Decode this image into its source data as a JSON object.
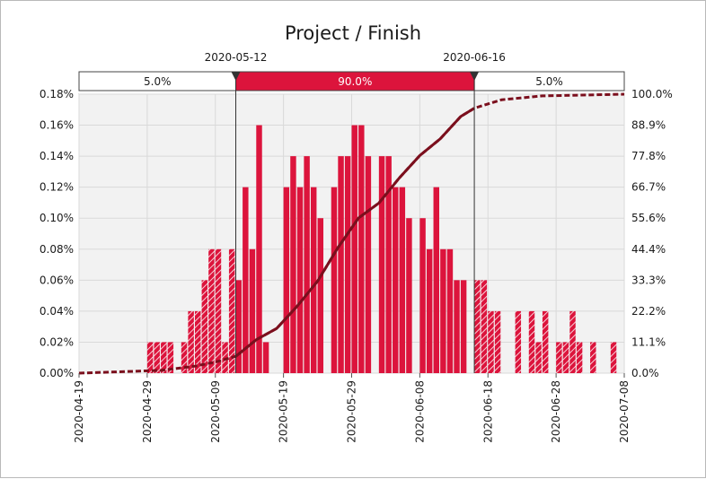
{
  "chart_data": {
    "type": "bar",
    "title": "Project / Finish",
    "x_ticks": [
      "2020-04-19",
      "2020-04-29",
      "2020-05-09",
      "2020-05-19",
      "2020-05-29",
      "2020-06-08",
      "2020-06-18",
      "2020-06-28",
      "2020-07-08"
    ],
    "x_range": [
      "2020-04-19",
      "2020-07-08"
    ],
    "y_left_ticks": [
      "0.00%",
      "0.02%",
      "0.04%",
      "0.06%",
      "0.08%",
      "0.10%",
      "0.12%",
      "0.14%",
      "0.16%",
      "0.18%"
    ],
    "y_left_range": [
      0,
      0.18
    ],
    "y_right_ticks": [
      "0.0%",
      "11.1%",
      "22.2%",
      "33.3%",
      "44.4%",
      "55.6%",
      "66.7%",
      "77.8%",
      "88.9%",
      "100.0%"
    ],
    "y_right_range": [
      0,
      100
    ],
    "grid": true,
    "markers": [
      {
        "label": "2020-05-12",
        "date": "2020-05-12"
      },
      {
        "label": "2020-06-16",
        "date": "2020-06-16"
      }
    ],
    "bands": [
      {
        "label": "5.0%",
        "from": "2020-04-19",
        "to": "2020-05-12",
        "fill": "#ffffff",
        "text_color": "#1a1a1a"
      },
      {
        "label": "90.0%",
        "from": "2020-05-12",
        "to": "2020-06-16",
        "fill": "#dc143c",
        "text_color": "#ffffff"
      },
      {
        "label": "5.0%",
        "from": "2020-06-16",
        "to": "2020-07-08",
        "fill": "#ffffff",
        "text_color": "#1a1a1a"
      }
    ],
    "colors": {
      "bar": "#dc143c",
      "cumulative_line": "#7b0f1d",
      "plot_bg": "#f2f2f2",
      "grid": "#d9d9d9"
    },
    "series": [
      {
        "type": "bar",
        "unit": "%",
        "points": [
          {
            "x": "2020-04-29",
            "y": 0.02
          },
          {
            "x": "2020-04-30",
            "y": 0.02
          },
          {
            "x": "2020-05-01",
            "y": 0.02
          },
          {
            "x": "2020-05-02",
            "y": 0.02
          },
          {
            "x": "2020-05-04",
            "y": 0.02
          },
          {
            "x": "2020-05-05",
            "y": 0.04
          },
          {
            "x": "2020-05-06",
            "y": 0.04
          },
          {
            "x": "2020-05-07",
            "y": 0.06
          },
          {
            "x": "2020-05-08",
            "y": 0.08
          },
          {
            "x": "2020-05-09",
            "y": 0.08
          },
          {
            "x": "2020-05-10",
            "y": 0.02
          },
          {
            "x": "2020-05-11",
            "y": 0.08
          },
          {
            "x": "2020-05-12",
            "y": 0.06
          },
          {
            "x": "2020-05-13",
            "y": 0.12
          },
          {
            "x": "2020-05-14",
            "y": 0.08
          },
          {
            "x": "2020-05-15",
            "y": 0.16
          },
          {
            "x": "2020-05-16",
            "y": 0.02
          },
          {
            "x": "2020-05-19",
            "y": 0.12
          },
          {
            "x": "2020-05-20",
            "y": 0.14
          },
          {
            "x": "2020-05-21",
            "y": 0.12
          },
          {
            "x": "2020-05-22",
            "y": 0.14
          },
          {
            "x": "2020-05-23",
            "y": 0.12
          },
          {
            "x": "2020-05-24",
            "y": 0.1
          },
          {
            "x": "2020-05-26",
            "y": 0.12
          },
          {
            "x": "2020-05-27",
            "y": 0.14
          },
          {
            "x": "2020-05-28",
            "y": 0.14
          },
          {
            "x": "2020-05-29",
            "y": 0.16
          },
          {
            "x": "2020-05-30",
            "y": 0.16
          },
          {
            "x": "2020-05-31",
            "y": 0.14
          },
          {
            "x": "2020-06-02",
            "y": 0.14
          },
          {
            "x": "2020-06-03",
            "y": 0.14
          },
          {
            "x": "2020-06-04",
            "y": 0.12
          },
          {
            "x": "2020-06-05",
            "y": 0.12
          },
          {
            "x": "2020-06-06",
            "y": 0.1
          },
          {
            "x": "2020-06-08",
            "y": 0.1
          },
          {
            "x": "2020-06-09",
            "y": 0.08
          },
          {
            "x": "2020-06-10",
            "y": 0.12
          },
          {
            "x": "2020-06-11",
            "y": 0.08
          },
          {
            "x": "2020-06-12",
            "y": 0.08
          },
          {
            "x": "2020-06-13",
            "y": 0.06
          },
          {
            "x": "2020-06-14",
            "y": 0.06
          },
          {
            "x": "2020-06-16",
            "y": 0.06
          },
          {
            "x": "2020-06-17",
            "y": 0.06
          },
          {
            "x": "2020-06-18",
            "y": 0.04
          },
          {
            "x": "2020-06-19",
            "y": 0.04
          },
          {
            "x": "2020-06-22",
            "y": 0.04
          },
          {
            "x": "2020-06-24",
            "y": 0.04
          },
          {
            "x": "2020-06-25",
            "y": 0.02
          },
          {
            "x": "2020-06-26",
            "y": 0.04
          },
          {
            "x": "2020-06-28",
            "y": 0.02
          },
          {
            "x": "2020-06-29",
            "y": 0.02
          },
          {
            "x": "2020-06-30",
            "y": 0.04
          },
          {
            "x": "2020-07-01",
            "y": 0.02
          },
          {
            "x": "2020-07-03",
            "y": 0.02
          },
          {
            "x": "2020-07-06",
            "y": 0.02
          }
        ]
      },
      {
        "type": "line",
        "unit": "%",
        "points": [
          {
            "x": "2020-04-19",
            "y": 0.0
          },
          {
            "x": "2020-05-01",
            "y": 1.0
          },
          {
            "x": "2020-05-06",
            "y": 2.5
          },
          {
            "x": "2020-05-09",
            "y": 4.0
          },
          {
            "x": "2020-05-12",
            "y": 6.0
          },
          {
            "x": "2020-05-15",
            "y": 12.0
          },
          {
            "x": "2020-05-18",
            "y": 16.0
          },
          {
            "x": "2020-05-21",
            "y": 24.0
          },
          {
            "x": "2020-05-24",
            "y": 33.0
          },
          {
            "x": "2020-05-27",
            "y": 45.0
          },
          {
            "x": "2020-05-30",
            "y": 55.6
          },
          {
            "x": "2020-06-02",
            "y": 61.0
          },
          {
            "x": "2020-06-05",
            "y": 70.0
          },
          {
            "x": "2020-06-08",
            "y": 78.0
          },
          {
            "x": "2020-06-11",
            "y": 84.0
          },
          {
            "x": "2020-06-14",
            "y": 92.0
          },
          {
            "x": "2020-06-16",
            "y": 95.0
          },
          {
            "x": "2020-06-20",
            "y": 98.0
          },
          {
            "x": "2020-06-26",
            "y": 99.4
          },
          {
            "x": "2020-07-08",
            "y": 100.0
          }
        ]
      }
    ]
  }
}
